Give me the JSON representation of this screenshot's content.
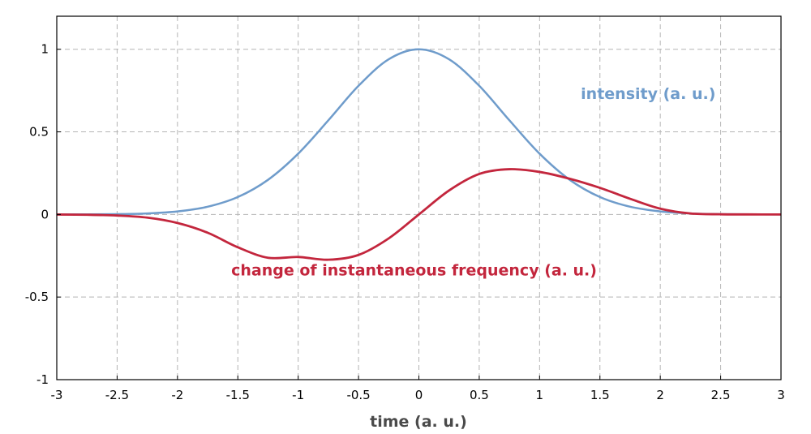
{
  "chart_data": {
    "type": "line",
    "title": "",
    "xlabel": "time (a. u.)",
    "ylabel": "",
    "xlim": [
      -3,
      3
    ],
    "ylim": [
      -1,
      1.2
    ],
    "x_ticks": [
      -3,
      -2.5,
      -2,
      -1.5,
      -1,
      -0.5,
      0,
      0.5,
      1,
      1.5,
      2,
      2.5,
      3
    ],
    "y_ticks": [
      -1,
      -0.5,
      0,
      0.5,
      1
    ],
    "x_tick_labels": [
      "-3",
      "-2.5",
      "-2",
      "-1.5",
      "-1",
      "-0.5",
      "0",
      "0.5",
      "1",
      "1.5",
      "2",
      "2.5",
      "3"
    ],
    "y_tick_labels": [
      "-1",
      "-0.5",
      "0",
      "0.5",
      "1"
    ],
    "grid": true,
    "legend": "none",
    "x": [
      -3,
      -2.75,
      -2.5,
      -2.25,
      -2,
      -1.75,
      -1.5,
      -1.25,
      -1,
      -0.75,
      -0.5,
      -0.25,
      0,
      0.25,
      0.5,
      0.75,
      1,
      1.25,
      1.5,
      1.75,
      2,
      2.25,
      2.5,
      2.75,
      3
    ],
    "series": [
      {
        "name": "intensity (a. u.)",
        "color": "#6f9ccb",
        "values": [
          0.0001,
          0.0005,
          0.0019,
          0.0063,
          0.0183,
          0.0468,
          0.1054,
          0.2096,
          0.3679,
          0.5698,
          0.7788,
          0.9394,
          1.0,
          0.9394,
          0.7788,
          0.5698,
          0.3679,
          0.2096,
          0.1054,
          0.0468,
          0.0183,
          0.0063,
          0.0019,
          0.0005,
          0.0001
        ]
      },
      {
        "name": "change of instantaneous frequency (a. u.)",
        "color": "#c3263d",
        "values": [
          -0.0004,
          -0.0019,
          -0.0066,
          -0.0193,
          -0.0518,
          -0.1105,
          -0.1987,
          -0.262,
          -0.2575,
          -0.274,
          -0.245,
          -0.145,
          0.0,
          0.145,
          0.245,
          0.274,
          0.2575,
          0.216,
          0.161,
          0.095,
          0.035,
          0.006,
          0.001,
          0.0002,
          0.0
        ]
      }
    ],
    "annotations": [
      {
        "text": "intensity (a. u.)",
        "x": 1.9,
        "y": 0.7,
        "color": "#6f9ccb"
      },
      {
        "text": "change of instantaneous frequency (a. u.)",
        "x": -0.04,
        "y": -0.37,
        "color": "#c3263d"
      }
    ]
  }
}
